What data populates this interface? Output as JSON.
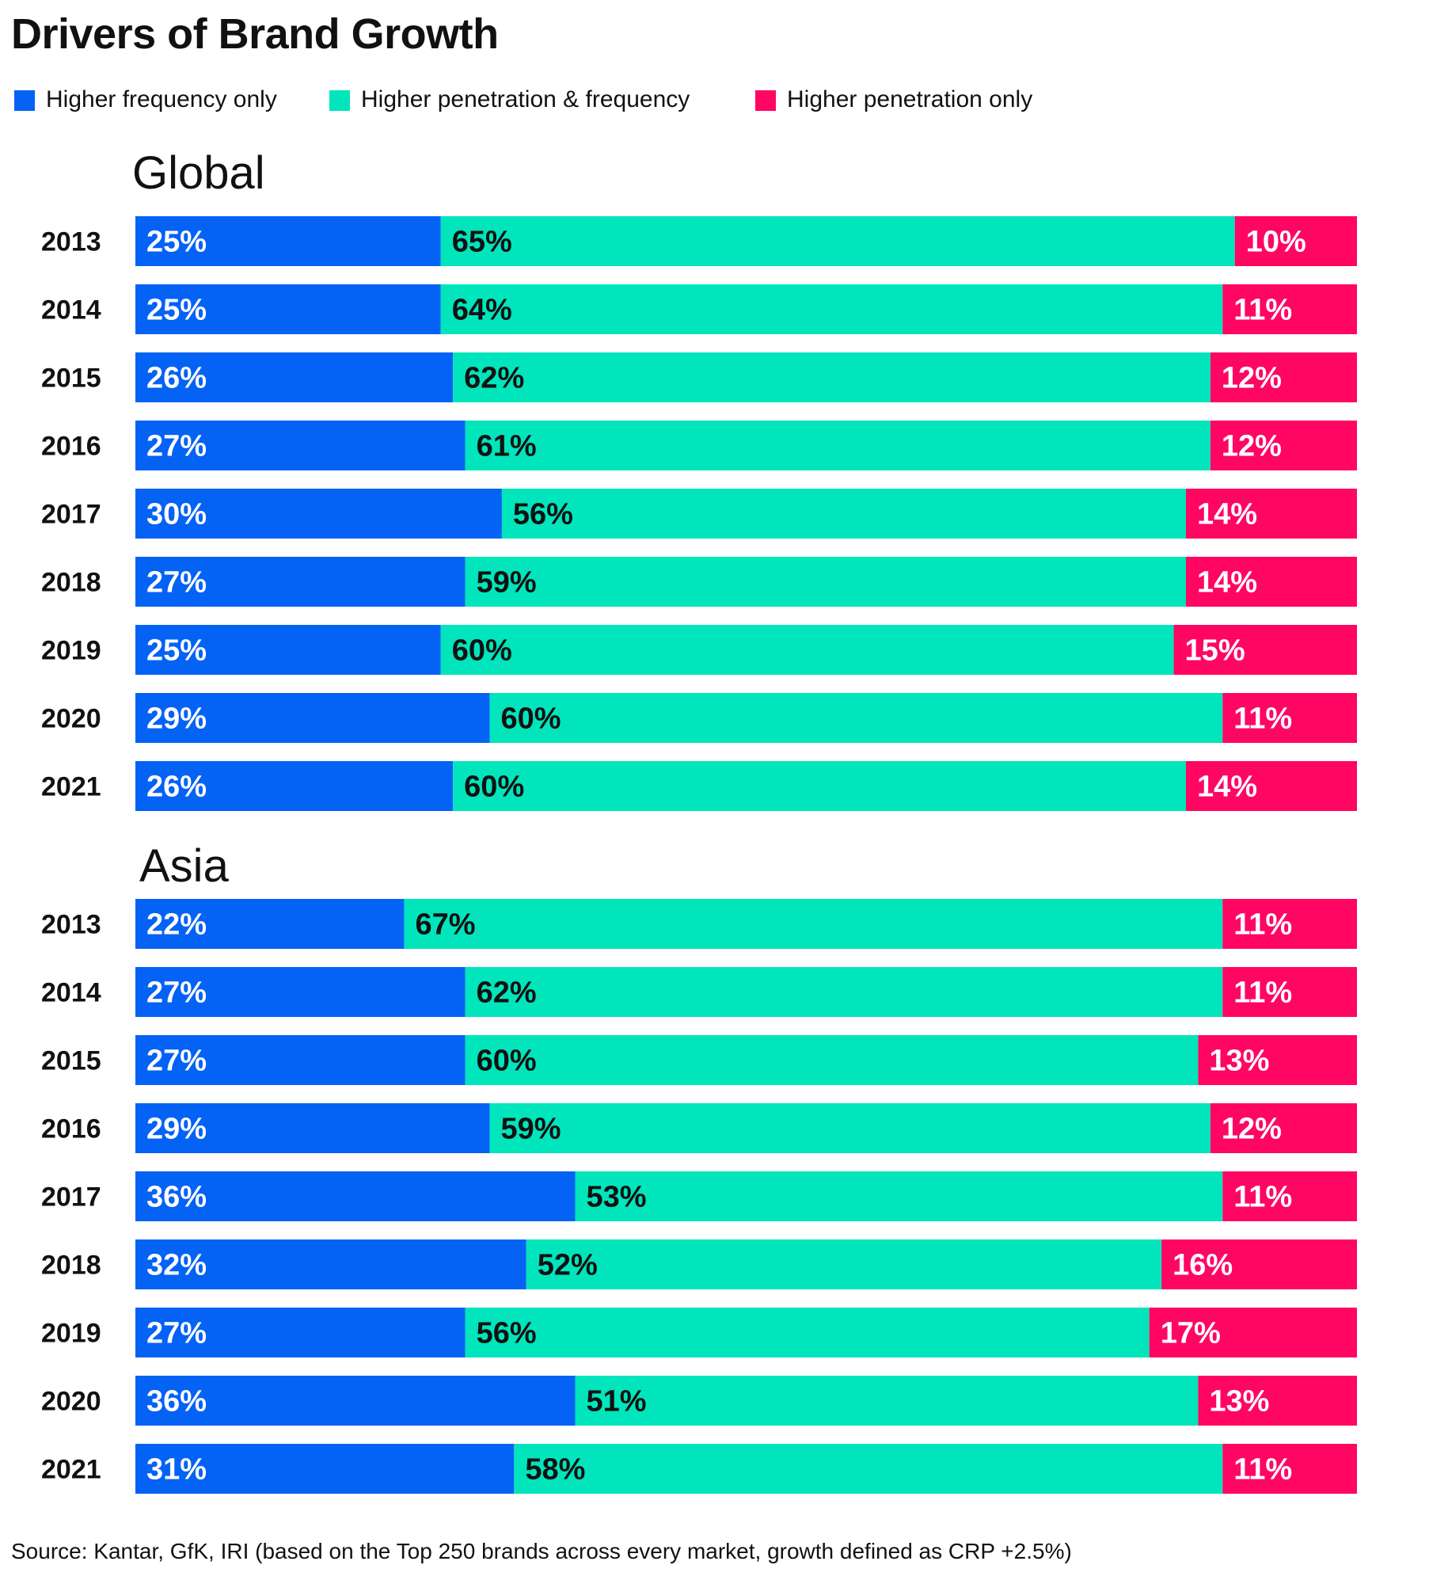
{
  "title": "Drivers of Brand Growth",
  "legend": [
    {
      "label": "Higher frequency only",
      "color": "#0462f5"
    },
    {
      "label": "Higher penetration & frequency",
      "color": "#00e5bc"
    },
    {
      "label": "Higher penetration only",
      "color": "#ff0663"
    }
  ],
  "source": "Source: Kantar, GfK, IRI (based on the Top 250 brands across every market, growth defined as CRP +2.5%)",
  "chart_data": [
    {
      "type": "bar",
      "orientation": "horizontal",
      "stacked": true,
      "title": "Global",
      "categories": [
        "2013",
        "2014",
        "2015",
        "2016",
        "2017",
        "2018",
        "2019",
        "2020",
        "2021"
      ],
      "series": [
        {
          "name": "Higher frequency only",
          "color": "#0462f5",
          "values": [
            25,
            25,
            26,
            27,
            30,
            27,
            25,
            29,
            26
          ],
          "labels": [
            "25%",
            "25%",
            "26%",
            "27%",
            "30%",
            "27%",
            "25%",
            "29%",
            "26%"
          ]
        },
        {
          "name": "Higher penetration & frequency",
          "color": "#00e5bc",
          "values": [
            65,
            64,
            62,
            61,
            56,
            59,
            60,
            60,
            60
          ],
          "labels": [
            "65%",
            "64%",
            "62%",
            "61%",
            "56%",
            "59%",
            "60%",
            "60%",
            "60%"
          ]
        },
        {
          "name": "Higher penetration only",
          "color": "#ff0663",
          "values": [
            10,
            11,
            12,
            12,
            14,
            14,
            15,
            11,
            14
          ],
          "labels": [
            "10%",
            "11%",
            "12%",
            "12%",
            "14%",
            "14%",
            "15%",
            "11%",
            "14%"
          ]
        }
      ],
      "xlim": [
        0,
        100
      ]
    },
    {
      "type": "bar",
      "orientation": "horizontal",
      "stacked": true,
      "title": "Asia",
      "categories": [
        "2013",
        "2014",
        "2015",
        "2016",
        "2017",
        "2018",
        "2019",
        "2020",
        "2021"
      ],
      "series": [
        {
          "name": "Higher frequency only",
          "color": "#0462f5",
          "values": [
            22,
            27,
            27,
            29,
            36,
            32,
            27,
            36,
            31
          ],
          "labels": [
            "22%",
            "27%",
            "27%",
            "29%",
            "36%",
            "32%",
            "27%",
            "36%",
            "31%"
          ]
        },
        {
          "name": "Higher penetration & frequency",
          "color": "#00e5bc",
          "values": [
            67,
            62,
            60,
            59,
            53,
            52,
            56,
            51,
            58
          ],
          "labels": [
            "67%",
            "62%",
            "60%",
            "59%",
            "53%",
            "52%",
            "56%",
            "51%",
            "58%"
          ]
        },
        {
          "name": "Higher penetration only",
          "color": "#ff0663",
          "values": [
            11,
            11,
            13,
            12,
            11,
            16,
            17,
            13,
            11
          ],
          "labels": [
            "11%",
            "11%",
            "13%",
            "12%",
            "11%",
            "16%",
            "17%",
            "13%",
            "11%"
          ]
        }
      ],
      "xlim": [
        0,
        100
      ]
    }
  ]
}
